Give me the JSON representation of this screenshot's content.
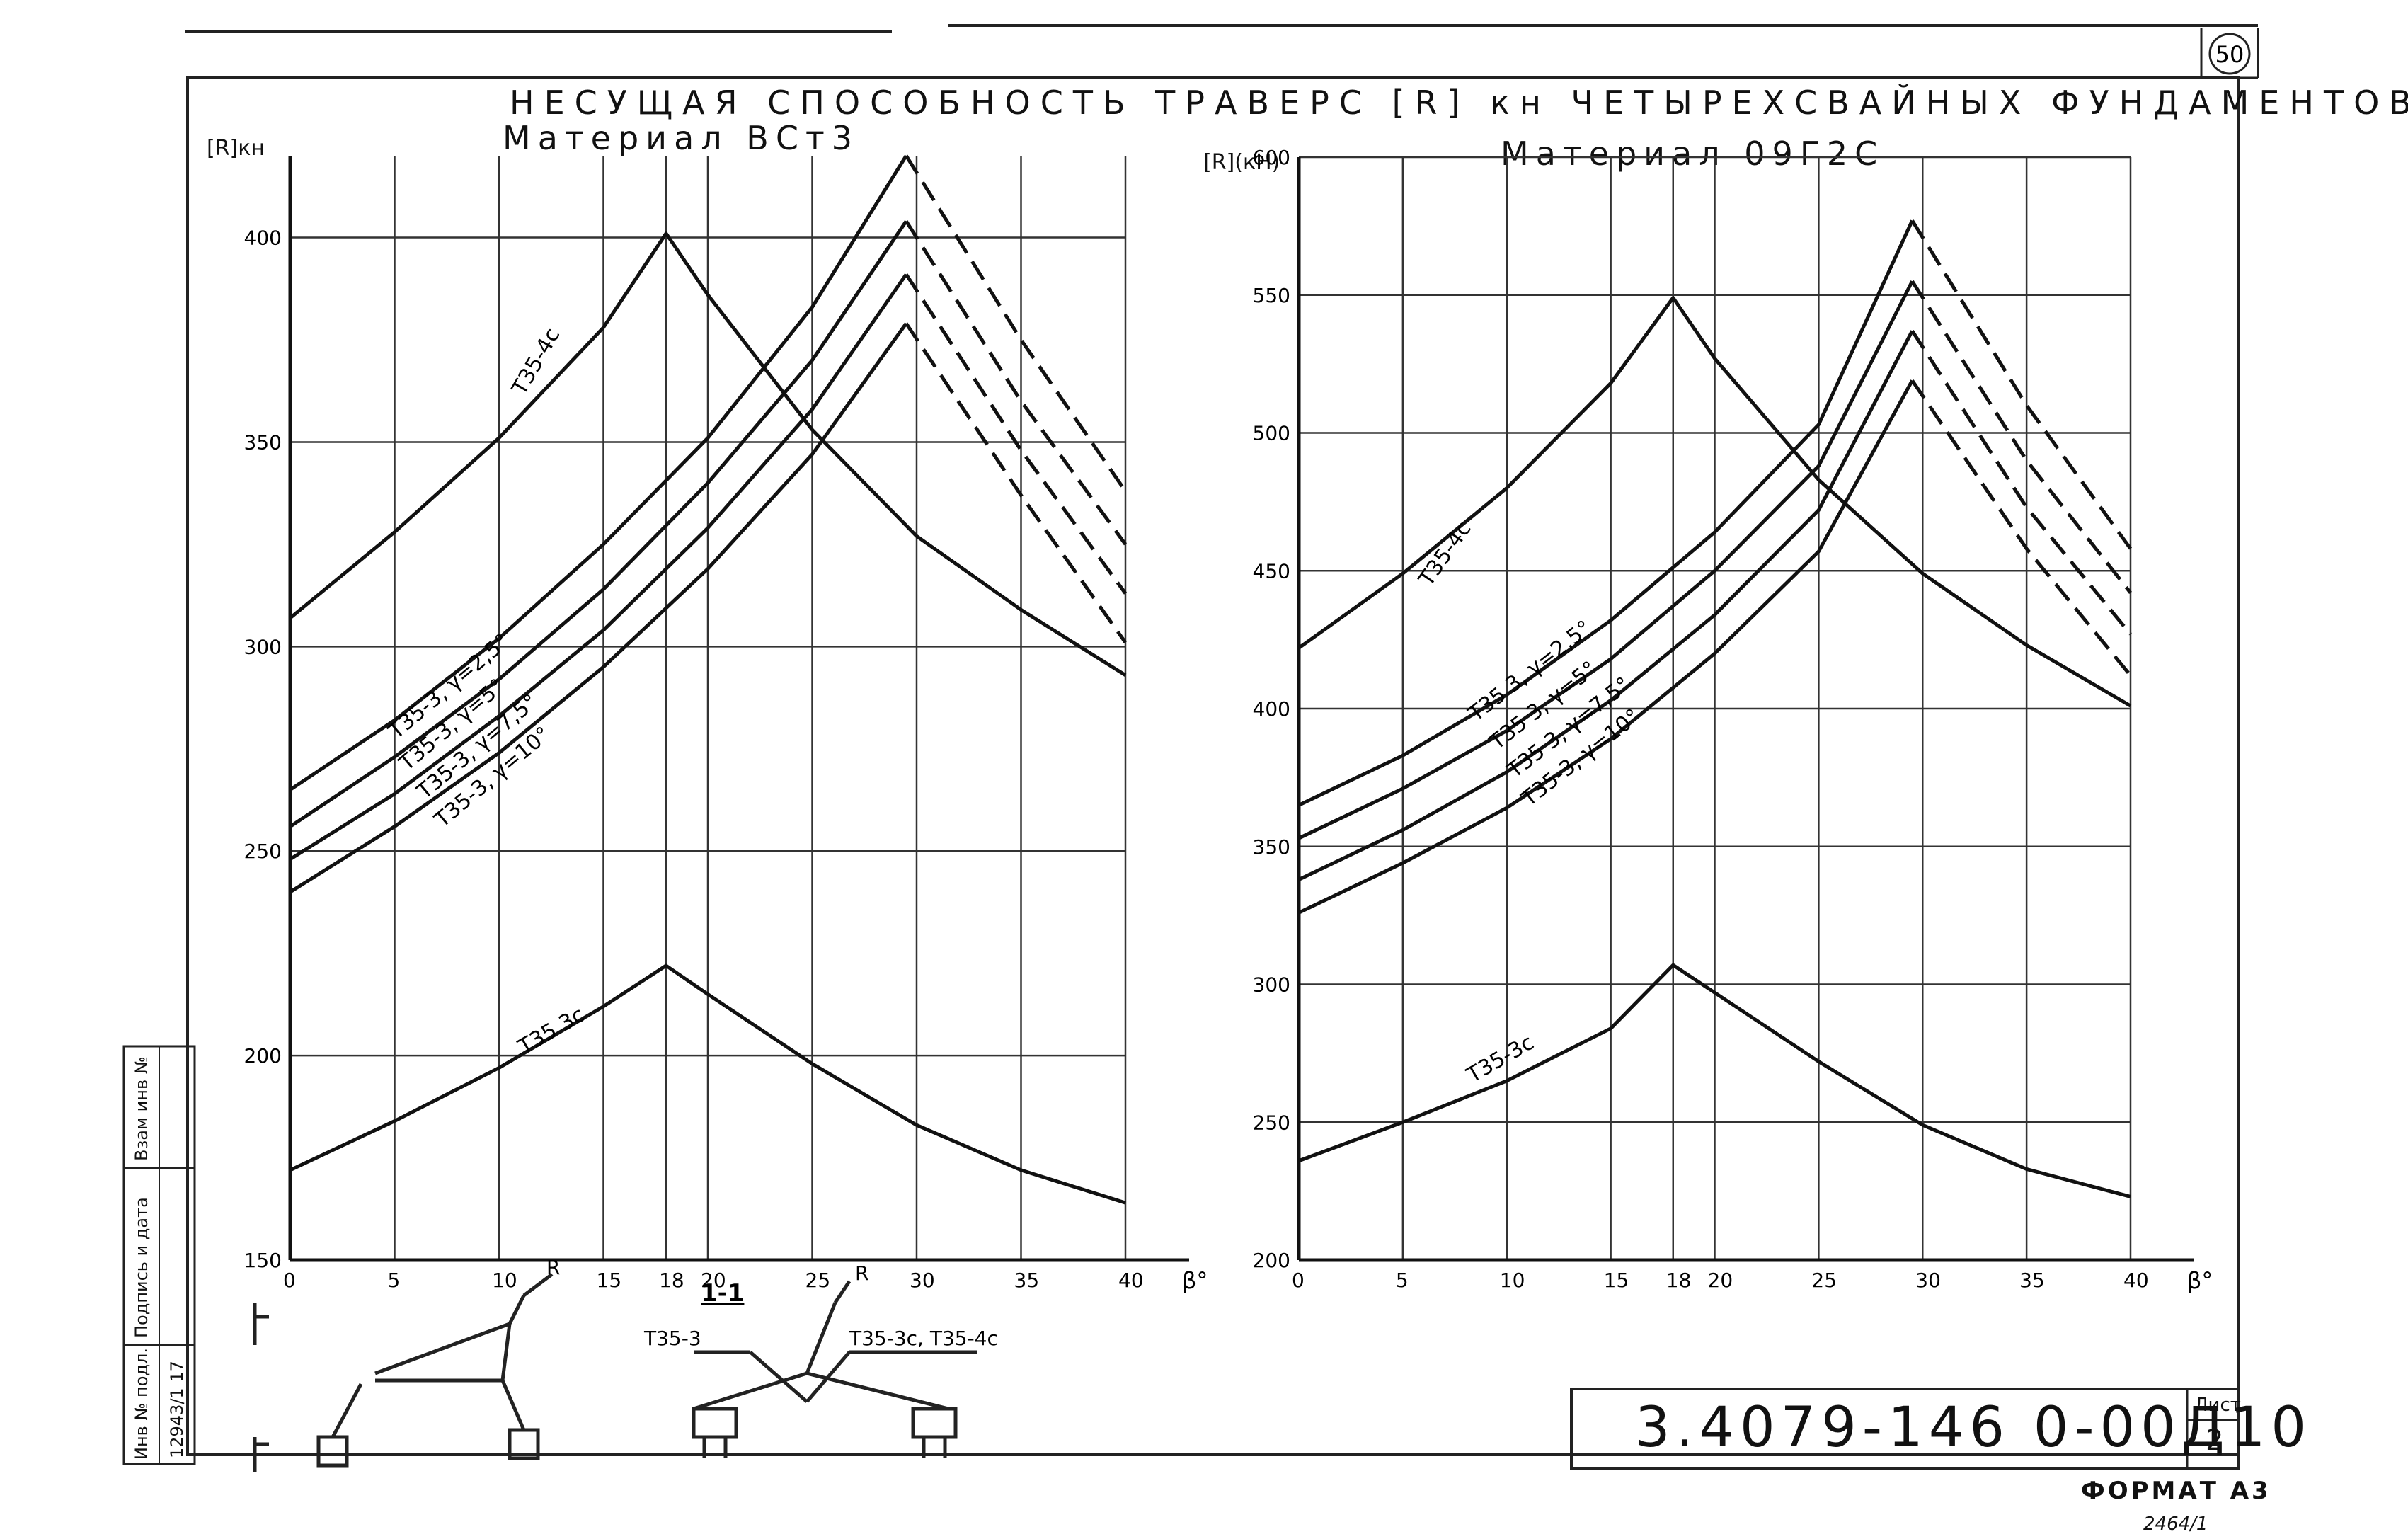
{
  "sheet": {
    "title": "НЕСУЩАЯ СПОСОБНОСТЬ ТРАВЕРС [R] кн ЧЕТЫРЕХСВАЙНЫХ ФУНДАМЕНТОВ",
    "page_mark": "50",
    "doc_code": "3.4079-146 0-00Д10",
    "sheet_label": "Лист",
    "sheet_number": "2",
    "format": "ФОРМАТ А3",
    "bottom_note": "2464/1",
    "stamp_fields": [
      "Инв № подл.",
      "Подпись и дата",
      "Взам инв №"
    ],
    "stamp_value": "12943/1 17",
    "section_label": "1-1",
    "diagram_labels": {
      "t35_3": "Т35-3",
      "t35_3c_4c": "Т35-3с, Т35-4с",
      "R": "R"
    }
  },
  "chart_data": [
    {
      "type": "line",
      "title": "Материал ВСт3",
      "ylabel": "[R]кн",
      "xlabel": "β°",
      "xlim": [
        0,
        40
      ],
      "ylim": [
        150,
        420
      ],
      "xticks": [
        0,
        5,
        10,
        15,
        18,
        20,
        25,
        30,
        35,
        40
      ],
      "yticks": [
        150,
        200,
        250,
        300,
        350,
        400
      ],
      "grid": true,
      "series": [
        {
          "name": "Т35-4с",
          "style": "solid",
          "x": [
            0,
            5,
            10,
            15,
            18,
            20,
            25,
            30,
            35,
            40
          ],
          "y": [
            307,
            328,
            351,
            378,
            401,
            386,
            353,
            327,
            309,
            293
          ]
        },
        {
          "name": "Т35-3, γ=2.5°",
          "style": "solid",
          "x": [
            0,
            5,
            10,
            15,
            20,
            25,
            29.5
          ],
          "y": [
            265,
            282,
            302,
            325,
            351,
            383,
            420
          ]
        },
        {
          "name": "Т35-3, γ=2.5° (далее)",
          "style": "dashed",
          "x": [
            29.5,
            35,
            40
          ],
          "y": [
            420,
            375,
            338
          ]
        },
        {
          "name": "Т35-3, γ=5°",
          "style": "solid",
          "x": [
            0,
            5,
            10,
            15,
            20,
            25,
            29.5
          ],
          "y": [
            256,
            273,
            292,
            314,
            340,
            370,
            404
          ]
        },
        {
          "name": "Т35-3, γ=5° (далее)",
          "style": "dashed",
          "x": [
            29.5,
            35,
            40
          ],
          "y": [
            404,
            360,
            325
          ]
        },
        {
          "name": "Т35-3, γ=7.5°",
          "style": "solid",
          "x": [
            0,
            5,
            10,
            15,
            20,
            25,
            29.5
          ],
          "y": [
            248,
            264,
            283,
            304,
            329,
            358,
            391
          ]
        },
        {
          "name": "Т35-3, γ=7.5° (далее)",
          "style": "dashed",
          "x": [
            29.5,
            35,
            40
          ],
          "y": [
            391,
            348,
            313
          ]
        },
        {
          "name": "Т35-3, γ=10°",
          "style": "solid",
          "x": [
            0,
            5,
            10,
            15,
            20,
            25,
            29.5
          ],
          "y": [
            240,
            256,
            274,
            295,
            319,
            347,
            379
          ]
        },
        {
          "name": "Т35-3, γ=10° (далее)",
          "style": "dashed",
          "x": [
            29.5,
            35,
            40
          ],
          "y": [
            379,
            337,
            301
          ]
        },
        {
          "name": "Т35-3с",
          "style": "solid",
          "x": [
            0,
            5,
            10,
            15,
            18,
            20,
            25,
            30,
            35,
            40
          ],
          "y": [
            172,
            184,
            197,
            212,
            222,
            215,
            198,
            183,
            172,
            164
          ]
        }
      ],
      "labels": {
        "t35_4c": "Т35-4с",
        "t35_3c": "Т35 3с",
        "curves": [
          "Т35-3, γ=2,5°",
          "Т35-3, γ=5°",
          "Т35-3, γ=7,5°",
          "Т35-3, γ=10°"
        ]
      }
    },
    {
      "type": "line",
      "title": "Материал 09Г2С",
      "ylabel": "[R](кН)",
      "xlabel": "β°",
      "xlim": [
        0,
        40
      ],
      "ylim": [
        200,
        600
      ],
      "xticks": [
        0,
        5,
        10,
        15,
        18,
        20,
        25,
        30,
        35,
        40
      ],
      "yticks": [
        200,
        250,
        300,
        350,
        400,
        450,
        500,
        550,
        600
      ],
      "grid": true,
      "series": [
        {
          "name": "Т35-4с",
          "style": "solid",
          "x": [
            0,
            5,
            10,
            15,
            18,
            20,
            25,
            30,
            35,
            40
          ],
          "y": [
            422,
            449,
            480,
            518,
            549,
            527,
            483,
            449,
            423,
            401
          ]
        },
        {
          "name": "Т35-3, γ=2.5°",
          "style": "solid",
          "x": [
            0,
            5,
            10,
            15,
            20,
            25,
            29.5
          ],
          "y": [
            365,
            383,
            405,
            432,
            464,
            503,
            577
          ]
        },
        {
          "name": "Т35-3, γ=2.5° (далее)",
          "style": "dashed",
          "x": [
            29.5,
            35,
            40
          ],
          "y": [
            577,
            510,
            458
          ]
        },
        {
          "name": "Т35-3, γ=5°",
          "style": "solid",
          "x": [
            0,
            5,
            10,
            15,
            20,
            25,
            29.5
          ],
          "y": [
            353,
            371,
            392,
            418,
            450,
            488,
            555
          ]
        },
        {
          "name": "Т35-3, γ=5° (далее)",
          "style": "dashed",
          "x": [
            29.5,
            35,
            40
          ],
          "y": [
            555,
            490,
            442
          ]
        },
        {
          "name": "Т35-3, γ=7.5°",
          "style": "solid",
          "x": [
            0,
            5,
            10,
            15,
            20,
            25,
            29.5
          ],
          "y": [
            338,
            356,
            377,
            403,
            434,
            472,
            537
          ]
        },
        {
          "name": "Т35-3, γ=7.5° (далее)",
          "style": "dashed",
          "x": [
            29.5,
            35,
            40
          ],
          "y": [
            537,
            473,
            427
          ]
        },
        {
          "name": "Т35-3, γ=10°",
          "style": "solid",
          "x": [
            0,
            5,
            10,
            15,
            20,
            25,
            29.5
          ],
          "y": [
            326,
            344,
            364,
            389,
            420,
            457,
            519
          ]
        },
        {
          "name": "Т35-3, γ=10° (далее)",
          "style": "dashed",
          "x": [
            29.5,
            35,
            40
          ],
          "y": [
            519,
            458,
            412
          ]
        },
        {
          "name": "Т35-3с",
          "style": "solid",
          "x": [
            0,
            5,
            10,
            15,
            18,
            20,
            25,
            30,
            35,
            40
          ],
          "y": [
            236,
            250,
            265,
            284,
            307,
            297,
            272,
            249,
            233,
            223
          ]
        }
      ],
      "labels": {
        "t35_4c": "Т35-4с",
        "t35_3c": "Т35-3с",
        "curves": [
          "Т35 3, γ=2,5°",
          "Т35 3, γ=5°",
          "Т35 3, γ=7,5°",
          "Т35-3, γ=10°"
        ]
      }
    }
  ]
}
